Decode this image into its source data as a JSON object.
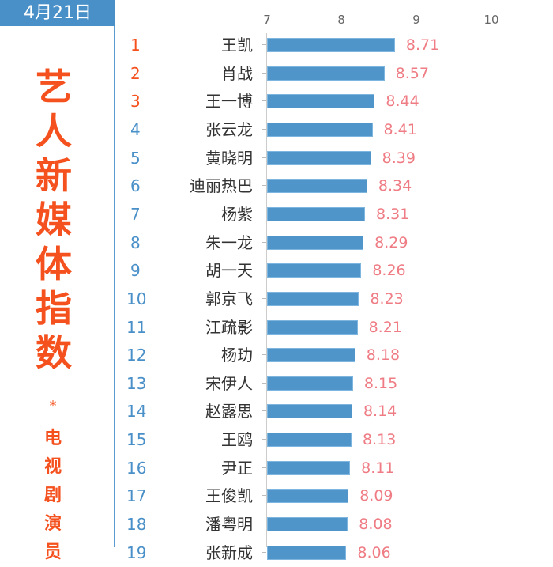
{
  "header": {
    "date": "4月21日"
  },
  "title": {
    "main_chars": [
      "艺",
      "人",
      "新",
      "媒",
      "体",
      "指",
      "数"
    ],
    "separator": "*",
    "sub_chars": [
      "电",
      "视",
      "剧",
      "演",
      "员"
    ]
  },
  "colors": {
    "accent_blue": "#4a90c8",
    "bar_blue": "#4f95c9",
    "title_orange": "#f4511e",
    "rank_top3": "#f4511e",
    "rank_other": "#4a90c8",
    "value_pink": "#ef7c84"
  },
  "chart_data": {
    "type": "bar",
    "orientation": "horizontal",
    "title": "艺人新媒体指数 * 电视剧演员",
    "subtitle": "4月21日",
    "xlabel": "",
    "ylabel": "",
    "xlim": [
      7,
      10
    ],
    "x_ticks": [
      "7",
      "8",
      "9",
      "10"
    ],
    "grid": false,
    "legend": null,
    "ranks": [
      "1",
      "2",
      "3",
      "4",
      "5",
      "6",
      "7",
      "8",
      "9",
      "10",
      "11",
      "12",
      "13",
      "14",
      "15",
      "16",
      "17",
      "18",
      "19"
    ],
    "categories": [
      "王凯",
      "肖战",
      "王一博",
      "张云龙",
      "黄晓明",
      "迪丽热巴",
      "杨紫",
      "朱一龙",
      "胡一天",
      "郭京飞",
      "江疏影",
      "杨玏",
      "宋伊人",
      "赵露思",
      "王鸥",
      "尹正",
      "王俊凯",
      "潘粤明",
      "张新成"
    ],
    "values": [
      8.71,
      8.57,
      8.44,
      8.41,
      8.39,
      8.34,
      8.31,
      8.29,
      8.26,
      8.23,
      8.21,
      8.18,
      8.15,
      8.14,
      8.13,
      8.11,
      8.09,
      8.08,
      8.06
    ],
    "value_labels": [
      "8.71",
      "8.57",
      "8.44",
      "8.41",
      "8.39",
      "8.34",
      "8.31",
      "8.29",
      "8.26",
      "8.23",
      "8.21",
      "8.18",
      "8.15",
      "8.14",
      "8.13",
      "8.11",
      "8.09",
      "8.08",
      "8.06"
    ]
  }
}
